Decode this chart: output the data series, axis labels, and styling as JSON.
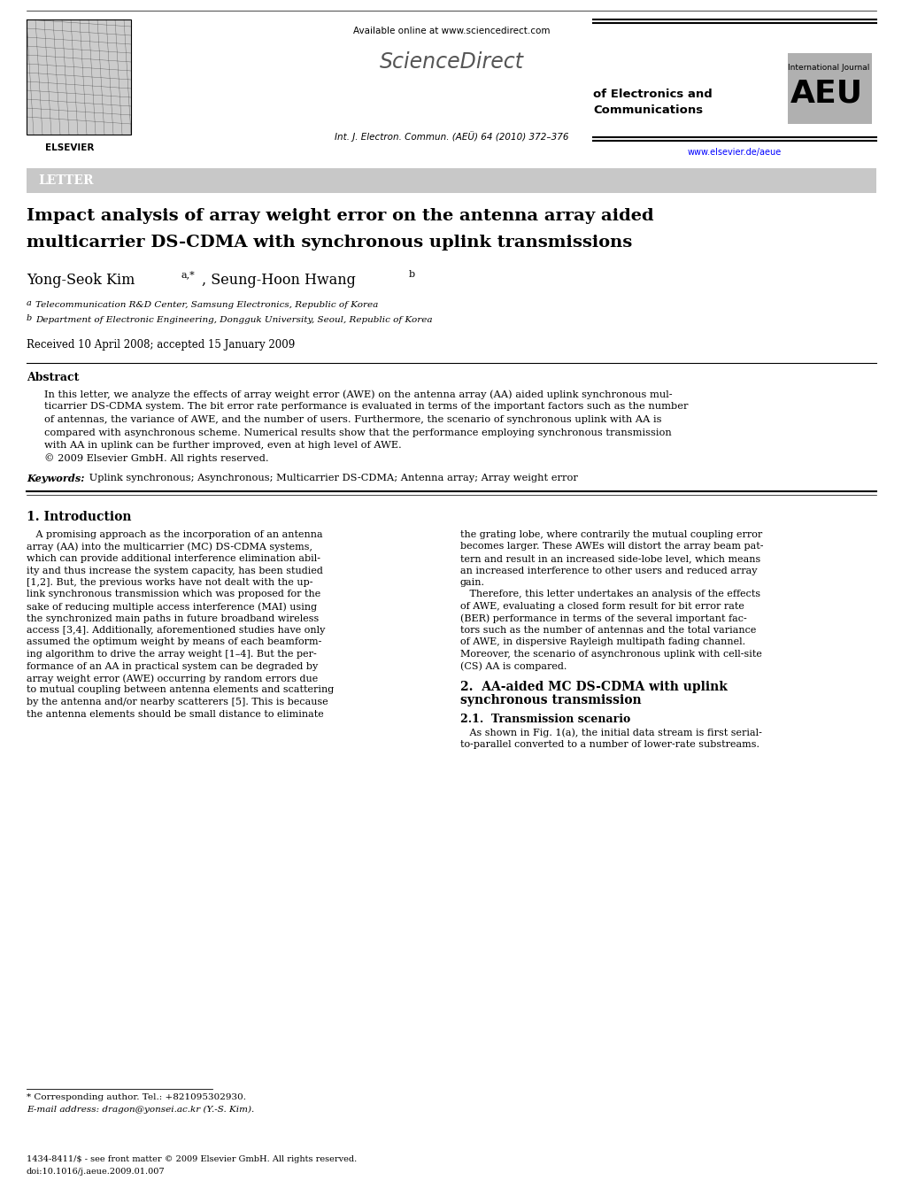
{
  "page_width": 10.2,
  "page_height": 13.51,
  "bg_color": "#ffffff",
  "header_available": "Available online at www.sciencedirect.com",
  "header_journal": "Int. J. Electron. Commun. (AEÜ) 64 (2010) 372–376",
  "header_website": "www.elsevier.de/aeue",
  "elsevier_text": "ELSEVIER",
  "sciencedirect_text": "ScienceDirect",
  "aeu_intl": "International Journal",
  "aeu_big": "AEU",
  "aeu_line3": "of Electronics and",
  "aeu_line4": "Communications",
  "letter_label": "LETTER",
  "title_line1": "Impact analysis of array weight error on the antenna array aided",
  "title_line2": "multicarrier DS-CDMA with synchronous uplink transmissions",
  "author_main": "Yong-Seok Kim",
  "author_super1": "a,*",
  "author_sep": ", Seung-Hoon Hwang",
  "author_super2": "b",
  "affil1": "aTelecommunication R&D Center, Samsung Electronics, Republic of Korea",
  "affil2": "bDepartment of Electronic Engineering, Dongguk University, Seoul, Republic of Korea",
  "received": "Received 10 April 2008; accepted 15 January 2009",
  "abstract_title": "Abstract",
  "abstract_lines": [
    "In this letter, we analyze the effects of array weight error (AWE) on the antenna array (AA) aided uplink synchronous mul-",
    "ticarrier DS-CDMA system. The bit error rate performance is evaluated in terms of the important factors such as the number",
    "of antennas, the variance of AWE, and the number of users. Furthermore, the scenario of synchronous uplink with AA is",
    "compared with asynchronous scheme. Numerical results show that the performance employing synchronous transmission",
    "with AA in uplink can be further improved, even at high level of AWE.",
    "© 2009 Elsevier GmbH. All rights reserved."
  ],
  "kw_label": "Keywords:",
  "kw_text": " Uplink synchronous; Asynchronous; Multicarrier DS-CDMA; Antenna array; Array weight error",
  "sec1_title": "1. Introduction",
  "sec1_left": [
    "   A promising approach as the incorporation of an antenna",
    "array (AA) into the multicarrier (MC) DS-CDMA systems,",
    "which can provide additional interference elimination abil-",
    "ity and thus increase the system capacity, has been studied",
    "[1,2]. But, the previous works have not dealt with the up-",
    "link synchronous transmission which was proposed for the",
    "sake of reducing multiple access interference (MAI) using",
    "the synchronized main paths in future broadband wireless",
    "access [3,4]. Additionally, aforementioned studies have only",
    "assumed the optimum weight by means of each beamform-",
    "ing algorithm to drive the array weight [1–4]. But the per-",
    "formance of an AA in practical system can be degraded by",
    "array weight error (AWE) occurring by random errors due",
    "to mutual coupling between antenna elements and scattering",
    "by the antenna and/or nearby scatterers [5]. This is because",
    "the antenna elements should be small distance to eliminate"
  ],
  "sec1_right": [
    "the grating lobe, where contrarily the mutual coupling error",
    "becomes larger. These AWEs will distort the array beam pat-",
    "tern and result in an increased side-lobe level, which means",
    "an increased interference to other users and reduced array",
    "gain.",
    "   Therefore, this letter undertakes an analysis of the effects",
    "of AWE, evaluating a closed form result for bit error rate",
    "(BER) performance in terms of the several important fac-",
    "tors such as the number of antennas and the total variance",
    "of AWE, in dispersive Rayleigh multipath fading channel.",
    "Moreover, the scenario of asynchronous uplink with cell-site",
    "(CS) AA is compared."
  ],
  "sec2_title_l1": "2.  AA-aided MC DS-CDMA with uplink",
  "sec2_title_l2": "synchronous transmission",
  "sec21_title": "2.1.  Transmission scenario",
  "sec21_text_l1": "   As shown in Fig. 1(a), the initial data stream is first serial-",
  "sec21_text_l2": "to-parallel converted to a number of lower-rate substreams.",
  "footnote_line": "* Corresponding author. Tel.: +821095302930.",
  "footnote_email": "E-mail address: dragon@yonsei.ac.kr (Y.-S. Kim).",
  "footer1": "1434-8411/$ - see front matter © 2009 Elsevier GmbH. All rights reserved.",
  "footer2": "doi:10.1016/j.aeue.2009.01.007"
}
